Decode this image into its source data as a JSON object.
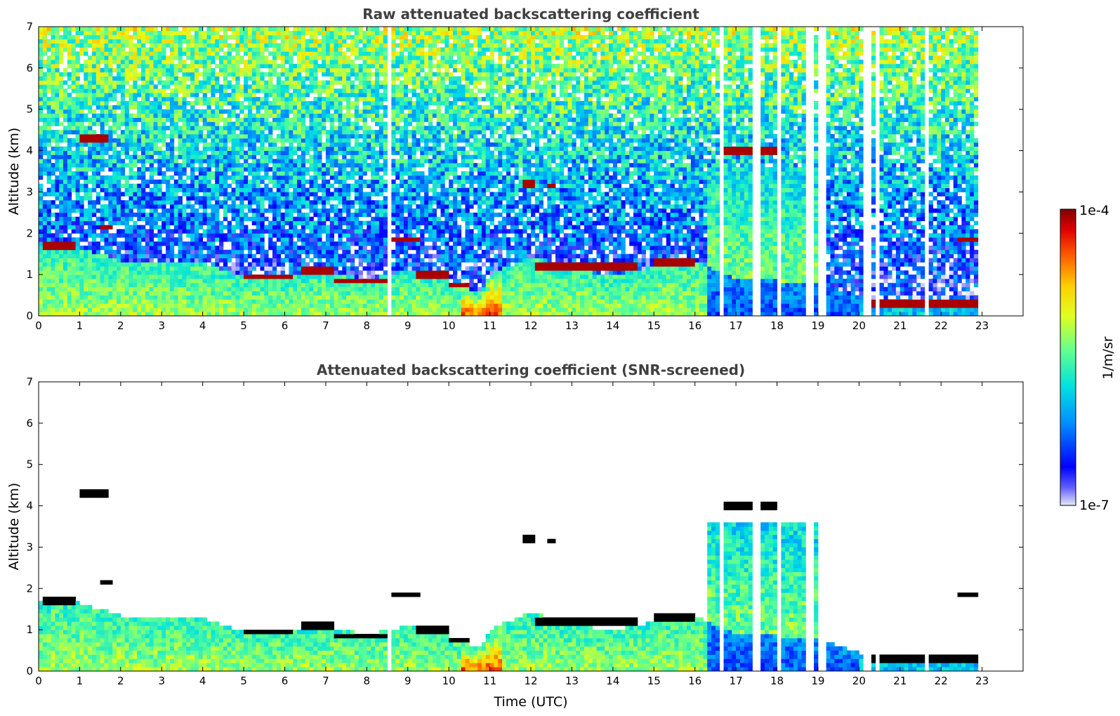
{
  "chart_data": [
    {
      "type": "heatmap",
      "title": "Raw attenuated backscattering coefficient",
      "xlabel": "",
      "ylabel": "Altitude (km)",
      "xlim": [
        0,
        24
      ],
      "ylim": [
        0,
        7
      ],
      "xticks": [
        0,
        1,
        2,
        3,
        4,
        5,
        6,
        7,
        8,
        9,
        10,
        11,
        12,
        13,
        14,
        15,
        16,
        17,
        18,
        19,
        20,
        21,
        22,
        23
      ],
      "yticks": [
        0,
        1,
        2,
        3,
        4,
        5,
        6,
        7
      ],
      "data_end_time": 22.9,
      "boundary_layer_top_km": [
        [
          0,
          1.75
        ],
        [
          1,
          1.65
        ],
        [
          2,
          1.35
        ],
        [
          3,
          1.25
        ],
        [
          4,
          1.3
        ],
        [
          5,
          0.95
        ],
        [
          6,
          0.95
        ],
        [
          7,
          1.05
        ],
        [
          8,
          0.9
        ],
        [
          9,
          1.1
        ],
        [
          10,
          0.85
        ],
        [
          10.8,
          0.55
        ],
        [
          11,
          1.0
        ],
        [
          12,
          1.45
        ],
        [
          13,
          1.1
        ],
        [
          14,
          1.0
        ],
        [
          15,
          1.2
        ],
        [
          16,
          1.35
        ],
        [
          17,
          0.9
        ],
        [
          18,
          0.85
        ],
        [
          19,
          0.8
        ],
        [
          20,
          0.45
        ],
        [
          21,
          0.35
        ],
        [
          22,
          0.3
        ],
        [
          22.9,
          0.25
        ]
      ],
      "cloud_layers": [
        {
          "t0": 1.0,
          "t1": 1.7,
          "alt": 4.27
        },
        {
          "t0": 16.7,
          "t1": 18.1,
          "alt": 4.02
        },
        {
          "t0": 11.8,
          "t1": 12.1,
          "alt": 3.2
        },
        {
          "t0": 12.4,
          "t1": 12.6,
          "alt": 3.15
        },
        {
          "t0": 8.6,
          "t1": 9.3,
          "alt": 1.85
        },
        {
          "t0": 1.5,
          "t1": 1.8,
          "alt": 2.15
        },
        {
          "t0": 22.4,
          "t1": 22.9,
          "alt": 1.85
        },
        {
          "t0": 0.1,
          "t1": 0.9,
          "alt": 1.72
        },
        {
          "t0": 12.1,
          "t1": 14.6,
          "alt": 1.2
        },
        {
          "t0": 15.0,
          "t1": 16.0,
          "alt": 1.28
        },
        {
          "t0": 5.0,
          "t1": 6.2,
          "alt": 0.95
        },
        {
          "t0": 6.4,
          "t1": 7.2,
          "alt": 1.1
        },
        {
          "t0": 7.2,
          "t1": 8.5,
          "alt": 0.85
        },
        {
          "t0": 9.2,
          "t1": 10.0,
          "alt": 1.0
        },
        {
          "t0": 10.0,
          "t1": 10.5,
          "alt": 0.75
        },
        {
          "t0": 20.2,
          "t1": 22.9,
          "alt": 0.3
        }
      ],
      "missing_profile_times": [
        8.55,
        8.6,
        16.65,
        17.45,
        17.5,
        17.55,
        18.0,
        18.08,
        18.3,
        18.75,
        18.85,
        19.05,
        19.1,
        19.15,
        20.15,
        20.25,
        20.45,
        20.7,
        21.0,
        21.3,
        21.65,
        22.0,
        22.3
      ]
    },
    {
      "type": "heatmap",
      "title": "Attenuated backscattering coefficient (SNR-screened)",
      "xlabel": "Time (UTC)",
      "ylabel": "Altitude (km)",
      "xlim": [
        0,
        24
      ],
      "ylim": [
        0,
        7
      ],
      "xticks": [
        0,
        1,
        2,
        3,
        4,
        5,
        6,
        7,
        8,
        9,
        10,
        11,
        12,
        13,
        14,
        15,
        16,
        17,
        18,
        19,
        20,
        21,
        22,
        23
      ],
      "yticks": [
        0,
        1,
        2,
        3,
        4,
        5,
        6,
        7
      ],
      "data_end_time": 22.9
    }
  ],
  "colorbar": {
    "label": "1/m/sr",
    "min_label": "1e-7",
    "max_label": "1e-4",
    "colors": {
      "low": "#e8e8f8",
      "blue": "#0000ff",
      "cyan": "#00e0e0",
      "green": "#80ff60",
      "yellow": "#ffe000",
      "orange": "#ff6000",
      "red": "#d00000",
      "dark_red": "#800000",
      "masked_cloud": "#000000"
    }
  }
}
